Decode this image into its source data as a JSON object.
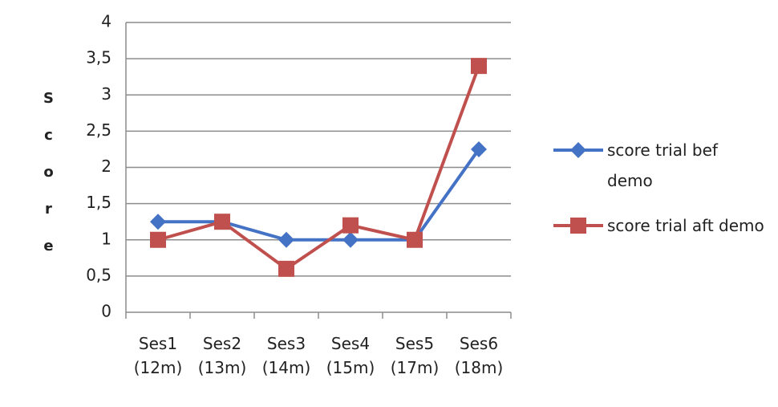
{
  "chart_data": {
    "type": "line",
    "y_label": "Score",
    "categories": [
      "Ses1 (12m)",
      "Ses2 (13m)",
      "Ses3 (14m)",
      "Ses4 (15m)",
      "Ses5 (17m)",
      "Ses6 (18m)"
    ],
    "series": [
      {
        "name": "score trial bef demo",
        "color": "#4472c4",
        "marker": "diamond",
        "values": [
          1.25,
          1.25,
          1,
          1,
          1,
          2.25
        ]
      },
      {
        "name": "score trial aft demo",
        "color": "#c0504d",
        "marker": "square",
        "values": [
          1,
          1.25,
          0.6,
          1.2,
          1,
          3.4
        ]
      }
    ],
    "ylim": [
      0,
      4
    ],
    "yticks": [
      0,
      {
        "value": 0.5,
        "label": "0,5"
      },
      1,
      {
        "value": 1.5,
        "label": "1,5"
      },
      2,
      {
        "value": 2.5,
        "label": "2,5"
      },
      3,
      {
        "value": 3.5,
        "label": "3,5"
      },
      4
    ],
    "grid": true,
    "legend": "right"
  }
}
